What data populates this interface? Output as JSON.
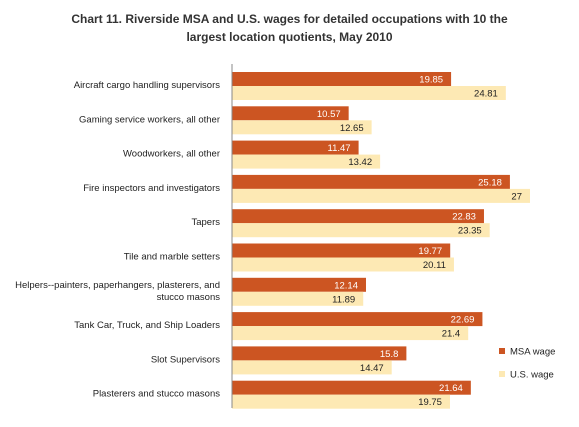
{
  "chart_data": {
    "type": "bar",
    "orientation": "horizontal",
    "title_lines": [
      "Chart 11. Riverside MSA and U.S. wages for detailed occupations  with 10 the",
      "largest location quotients, May 2010"
    ],
    "categories": [
      [
        "Aircraft cargo handling supervisors"
      ],
      [
        "Gaming service workers, all other"
      ],
      [
        "Woodworkers, all other"
      ],
      [
        "Fire inspectors and investigators"
      ],
      [
        "Tapers"
      ],
      [
        "Tile and marble setters"
      ],
      [
        "Helpers--painters, paperhangers, plasterers, and",
        "stucco masons"
      ],
      [
        "Tank Car, Truck, and Ship Loaders"
      ],
      [
        "Slot Supervisors"
      ],
      [
        "Plasterers and stucco masons"
      ]
    ],
    "series": [
      {
        "name": "MSA wage",
        "color": "#cc5522",
        "values": [
          19.85,
          10.57,
          11.47,
          25.18,
          22.83,
          19.77,
          12.14,
          22.69,
          15.8,
          21.64
        ],
        "labels": [
          "19.85",
          "10.57",
          "11.47",
          "25.18",
          "22.83",
          "19.77",
          "12.14",
          "22.69",
          "15.8",
          "21.64"
        ]
      },
      {
        "name": "U.S. wage",
        "color": "#fde9b4",
        "values": [
          24.81,
          12.65,
          13.42,
          27,
          23.35,
          20.11,
          11.89,
          21.4,
          14.47,
          19.75
        ],
        "labels": [
          "24.81",
          "12.65",
          "13.42",
          "27",
          "23.35",
          "20.11",
          "11.89",
          "21.4",
          "14.47",
          "19.75"
        ]
      }
    ],
    "xlim": [
      0,
      30
    ],
    "grid": false,
    "legend_position": "right"
  }
}
